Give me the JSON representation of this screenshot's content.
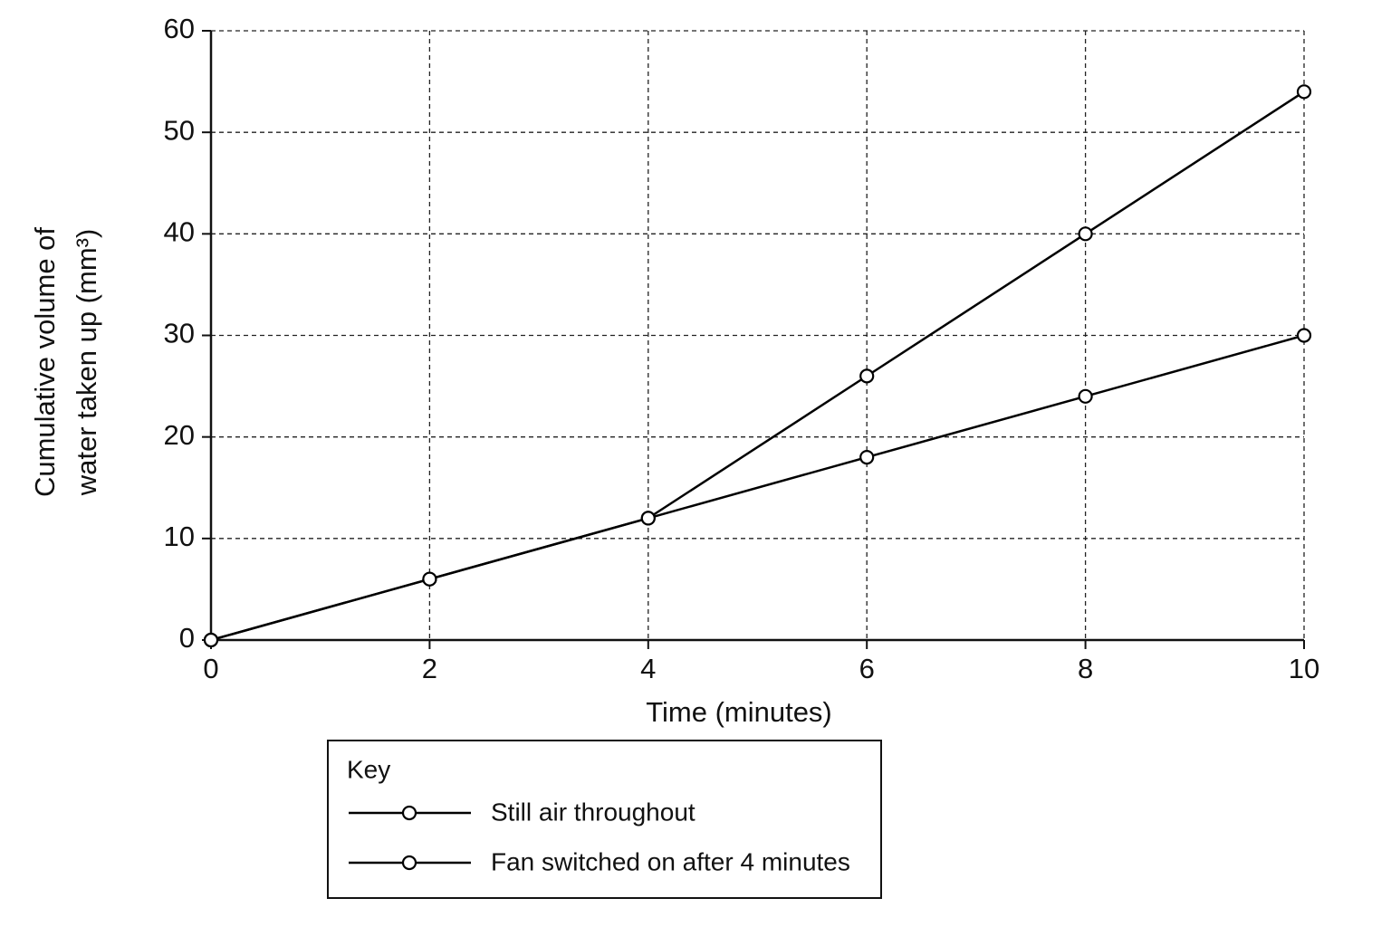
{
  "chart_data": {
    "type": "line",
    "xlabel": "Time (minutes)",
    "ylabel": [
      "Cumulative volume of",
      "water taken up (mm³)"
    ],
    "x": [
      0,
      2,
      4,
      6,
      8,
      10
    ],
    "series": [
      {
        "name": "Still air throughout",
        "color": "#000000",
        "values": [
          0,
          6,
          12,
          18,
          24,
          30
        ]
      },
      {
        "name": "Fan switched on after 4 minutes",
        "color": "#000000",
        "values": [
          0,
          6,
          12,
          26,
          40,
          54
        ]
      }
    ],
    "xlim": [
      0,
      10
    ],
    "xticks": [
      0,
      2,
      4,
      6,
      8,
      10
    ],
    "ylim": [
      0,
      60
    ],
    "yticks": [
      0,
      10,
      20,
      30,
      40,
      50,
      60
    ],
    "grid": true,
    "legend_title": "Key"
  }
}
